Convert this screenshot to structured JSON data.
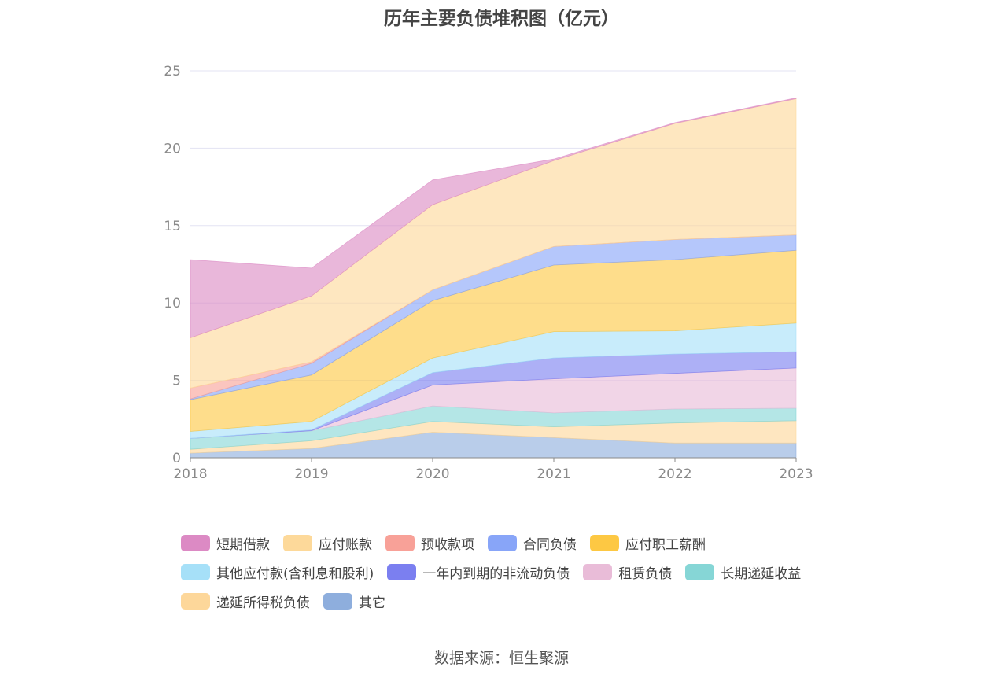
{
  "chart_data": {
    "type": "area",
    "stacked": true,
    "title": "历年主要负债堆积图（亿元）",
    "x": [
      "2018",
      "2019",
      "2020",
      "2021",
      "2022",
      "2023"
    ],
    "ylim": [
      0,
      25
    ],
    "yticks": [
      "0",
      "5",
      "10",
      "15",
      "20",
      "25"
    ],
    "grid": true,
    "legend_position": "bottom",
    "series": [
      {
        "name": "其它",
        "color": "#8eaedd",
        "values": [
          0.3,
          0.6,
          1.65,
          1.3,
          0.95,
          0.95
        ]
      },
      {
        "name": "递延所得税负债",
        "color": "#fdd79a",
        "values": [
          0.25,
          0.5,
          0.7,
          0.7,
          1.3,
          1.45
        ]
      },
      {
        "name": "长期递延收益",
        "color": "#86d6d6",
        "values": [
          0.7,
          0.65,
          1.0,
          0.9,
          0.9,
          0.8
        ]
      },
      {
        "name": "租赁负债",
        "color": "#e9bcd8",
        "values": [
          0.0,
          0.0,
          1.35,
          2.2,
          2.3,
          2.6
        ]
      },
      {
        "name": "一年内到期的非流动负债",
        "color": "#7b7ff0",
        "values": [
          0.0,
          0.05,
          0.8,
          1.35,
          1.25,
          1.05
        ]
      },
      {
        "name": "其他应付款(含利息和股利)",
        "color": "#a6e0f8",
        "values": [
          0.45,
          0.55,
          0.95,
          1.7,
          1.5,
          1.85
        ]
      },
      {
        "name": "应付职工薪酬",
        "color": "#fdc843",
        "values": [
          2.05,
          3.0,
          3.7,
          4.3,
          4.6,
          4.7
        ]
      },
      {
        "name": "合同负债",
        "color": "#88a5f8",
        "values": [
          0.05,
          0.75,
          0.7,
          1.2,
          1.3,
          1.0
        ]
      },
      {
        "name": "预收款项",
        "color": "#f8a198",
        "values": [
          0.7,
          0.1,
          0.0,
          0.0,
          0.0,
          0.0
        ]
      },
      {
        "name": "应付账款",
        "color": "#fdd99a",
        "values": [
          3.25,
          4.25,
          5.5,
          5.55,
          7.5,
          8.8
        ]
      },
      {
        "name": "短期借款",
        "color": "#dc8ac4",
        "values": [
          5.05,
          1.8,
          1.6,
          0.1,
          0.05,
          0.05
        ]
      }
    ],
    "legend_order": [
      "短期借款",
      "应付账款",
      "预收款项",
      "合同负债",
      "应付职工薪酬",
      "其他应付款(含利息和股利)",
      "一年内到期的非流动负债",
      "租赁负债",
      "长期递延收益",
      "递延所得税负债",
      "其它"
    ],
    "source": "数据来源：恒生聚源"
  }
}
